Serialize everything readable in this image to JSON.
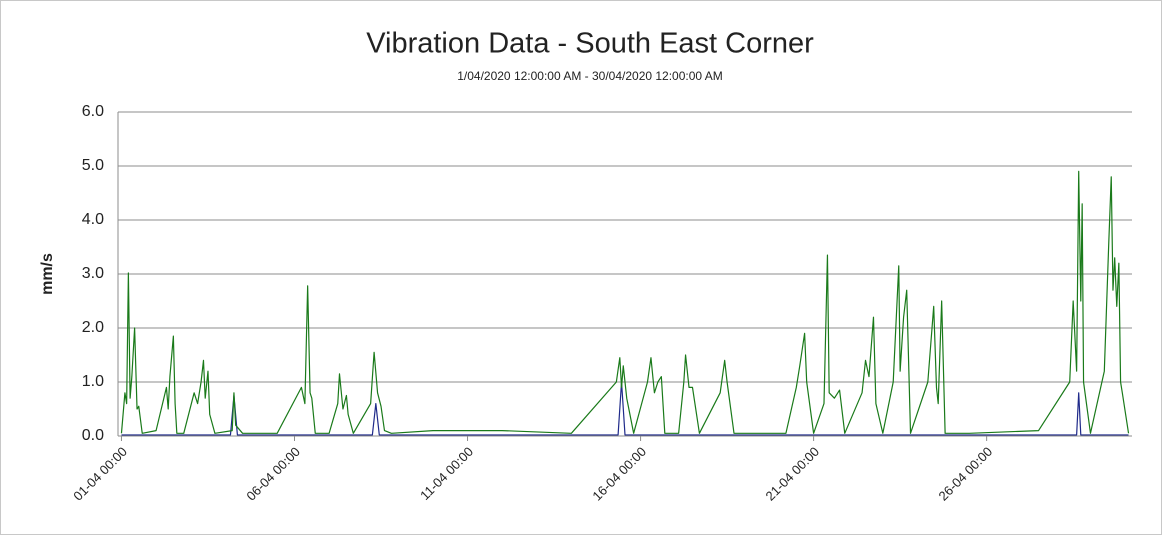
{
  "chart_data": {
    "type": "line",
    "title": "Vibration Data - South East Corner",
    "subtitle": "1/04/2020 12:00:00 AM - 30/04/2020 12:00:00 AM",
    "y_label": "mm/s",
    "grid": true,
    "xlim": [
      0.9,
      30.2
    ],
    "ylim": [
      0,
      6
    ],
    "xticks": [
      {
        "value": 1,
        "label": "01-04 00:00"
      },
      {
        "value": 6,
        "label": "06-04 00:00"
      },
      {
        "value": 11,
        "label": "11-04 00:00"
      },
      {
        "value": 16,
        "label": "16-04 00:00"
      },
      {
        "value": 21,
        "label": "21-04 00:00"
      },
      {
        "value": 26,
        "label": "26-04 00:00"
      }
    ],
    "yticks": [
      {
        "value": 0,
        "label": "0.0"
      },
      {
        "value": 1,
        "label": "1.0"
      },
      {
        "value": 2,
        "label": "2.0"
      },
      {
        "value": 3,
        "label": "3.0"
      },
      {
        "value": 4,
        "label": "4.0"
      },
      {
        "value": 5,
        "label": "5.0"
      },
      {
        "value": 6,
        "label": "6.0"
      }
    ],
    "series": [
      {
        "color": "#1f2a8a",
        "x": [
          1.0,
          4.15,
          4.25,
          4.35,
          8.25,
          8.35,
          8.45,
          15.35,
          15.45,
          15.55,
          28.6,
          28.66,
          28.72,
          30.1
        ],
        "values": [
          0.02,
          0.02,
          0.75,
          0.02,
          0.02,
          0.6,
          0.02,
          0.02,
          1.0,
          0.02,
          0.02,
          0.8,
          0.02,
          0.02
        ]
      },
      {
        "color": "#1a7a1a",
        "x": [
          1.0,
          1.1,
          1.15,
          1.2,
          1.25,
          1.3,
          1.38,
          1.45,
          1.5,
          1.6,
          2.0,
          2.3,
          2.35,
          2.4,
          2.5,
          2.55,
          2.6,
          2.8,
          3.1,
          3.2,
          3.3,
          3.37,
          3.42,
          3.5,
          3.55,
          3.7,
          4.2,
          4.25,
          4.3,
          4.5,
          5.5,
          6.2,
          6.3,
          6.38,
          6.45,
          6.5,
          6.6,
          7.0,
          7.25,
          7.3,
          7.4,
          7.5,
          7.55,
          7.7,
          8.2,
          8.3,
          8.4,
          8.5,
          8.6,
          8.8,
          10,
          12,
          14,
          15.3,
          15.4,
          15.45,
          15.5,
          15.6,
          15.8,
          16.2,
          16.3,
          16.4,
          16.5,
          16.6,
          16.7,
          17.1,
          17.25,
          17.3,
          17.4,
          17.5,
          17.7,
          18.3,
          18.43,
          18.5,
          18.7,
          20.2,
          20.5,
          20.6,
          20.74,
          20.8,
          21.0,
          21.3,
          21.4,
          21.45,
          21.6,
          21.75,
          21.9,
          22.4,
          22.5,
          22.6,
          22.73,
          22.8,
          23.0,
          23.3,
          23.46,
          23.5,
          23.6,
          23.69,
          23.8,
          24.3,
          24.47,
          24.55,
          24.6,
          24.7,
          24.8,
          25.5,
          27.5,
          28.4,
          28.5,
          28.6,
          28.66,
          28.72,
          28.76,
          28.8,
          29.0,
          29.4,
          29.53,
          29.6,
          29.65,
          29.7,
          29.76,
          29.82,
          29.87,
          29.92,
          30.1
        ],
        "values": [
          0.05,
          0.8,
          0.6,
          3.02,
          0.7,
          1.1,
          2.0,
          0.5,
          0.55,
          0.05,
          0.1,
          0.9,
          0.5,
          1.1,
          1.85,
          0.6,
          0.05,
          0.05,
          0.8,
          0.6,
          1.0,
          1.4,
          0.7,
          1.2,
          0.4,
          0.05,
          0.1,
          0.8,
          0.2,
          0.05,
          0.05,
          0.9,
          0.6,
          2.78,
          0.8,
          0.7,
          0.05,
          0.05,
          0.6,
          1.15,
          0.5,
          0.75,
          0.4,
          0.05,
          0.6,
          1.55,
          0.8,
          0.55,
          0.1,
          0.05,
          0.1,
          0.1,
          0.05,
          1.0,
          1.45,
          0.9,
          1.3,
          0.7,
          0.05,
          1.0,
          1.45,
          0.8,
          1.0,
          1.1,
          0.05,
          0.05,
          1.0,
          1.5,
          0.9,
          0.9,
          0.05,
          0.8,
          1.4,
          1.0,
          0.05,
          0.05,
          0.9,
          1.3,
          1.9,
          1.0,
          0.05,
          0.6,
          3.35,
          0.8,
          0.7,
          0.85,
          0.05,
          0.8,
          1.4,
          1.1,
          2.2,
          0.6,
          0.05,
          1.0,
          3.15,
          1.2,
          2.2,
          2.7,
          0.05,
          1.0,
          2.4,
          0.9,
          0.6,
          2.5,
          0.05,
          0.05,
          0.1,
          1.0,
          2.5,
          1.2,
          4.9,
          2.5,
          4.3,
          1.0,
          0.05,
          1.2,
          3.6,
          4.8,
          2.7,
          3.3,
          2.4,
          3.2,
          1.0,
          0.8,
          0.05
        ]
      }
    ]
  }
}
